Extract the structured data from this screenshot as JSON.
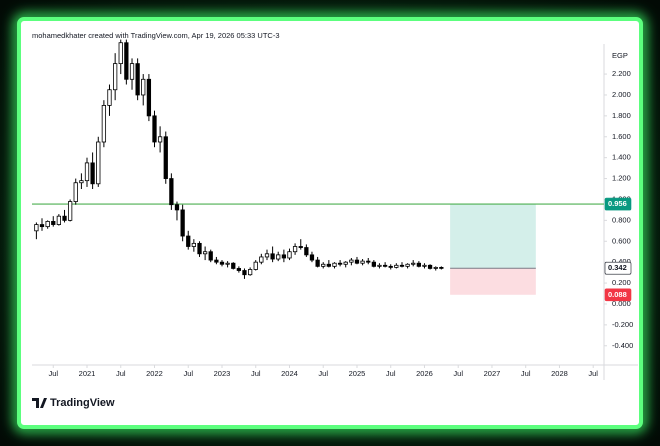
{
  "header": {
    "attribution": "mohamedkhater created with TradingView.com, Apr 19, 2026 05:33 UTC-3",
    "logo": "TradingView"
  },
  "chart_data": {
    "type": "candlestick",
    "currency": "EGP",
    "x": [
      2020.25,
      2020.333,
      2020.417,
      2020.5,
      2020.583,
      2020.667,
      2020.75,
      2020.833,
      2020.917,
      2021,
      2021.083,
      2021.167,
      2021.25,
      2021.333,
      2021.417,
      2021.5,
      2021.583,
      2021.667,
      2021.75,
      2021.833,
      2021.917,
      2022,
      2022.083,
      2022.167,
      2022.25,
      2022.333,
      2022.417,
      2022.5,
      2022.583,
      2022.667,
      2022.75,
      2022.833,
      2022.917,
      2023,
      2023.083,
      2023.167,
      2023.25,
      2023.333,
      2023.417,
      2023.5,
      2023.583,
      2023.667,
      2023.75,
      2023.833,
      2023.917,
      2024,
      2024.083,
      2024.167,
      2024.25,
      2024.333,
      2024.417,
      2024.5,
      2024.583,
      2024.667,
      2024.75,
      2024.833,
      2024.917,
      2025,
      2025.083,
      2025.167,
      2025.25,
      2025.333,
      2025.417,
      2025.5,
      2025.583,
      2025.667,
      2025.75,
      2025.833,
      2025.917,
      2026,
      2026.083,
      2026.167,
      2026.25
    ],
    "open": [
      0.7,
      0.76,
      0.74,
      0.79,
      0.76,
      0.84,
      0.8,
      0.98,
      1.16,
      1.18,
      1.35,
      1.15,
      1.55,
      1.9,
      2.05,
      2.3,
      2.5,
      2.15,
      2.3,
      2.0,
      2.15,
      1.8,
      1.55,
      1.6,
      1.2,
      0.95,
      0.9,
      0.65,
      0.55,
      0.58,
      0.48,
      0.5,
      0.42,
      0.4,
      0.38,
      0.39,
      0.34,
      0.32,
      0.28,
      0.33,
      0.4,
      0.45,
      0.48,
      0.43,
      0.47,
      0.44,
      0.5,
      0.55,
      0.54,
      0.47,
      0.42,
      0.36,
      0.38,
      0.36,
      0.39,
      0.38,
      0.4,
      0.42,
      0.39,
      0.41,
      0.4,
      0.36,
      0.37,
      0.36,
      0.35,
      0.37,
      0.36,
      0.38,
      0.39,
      0.36,
      0.37,
      0.34,
      0.35
    ],
    "high": [
      0.78,
      0.82,
      0.8,
      0.84,
      0.86,
      0.9,
      1.0,
      1.2,
      1.25,
      1.4,
      1.45,
      1.6,
      1.95,
      2.1,
      2.4,
      2.53,
      2.53,
      2.35,
      2.35,
      2.2,
      2.2,
      1.85,
      1.7,
      1.65,
      1.25,
      0.98,
      0.95,
      0.7,
      0.62,
      0.6,
      0.55,
      0.52,
      0.45,
      0.42,
      0.41,
      0.4,
      0.36,
      0.34,
      0.35,
      0.42,
      0.48,
      0.52,
      0.55,
      0.5,
      0.52,
      0.53,
      0.58,
      0.62,
      0.57,
      0.5,
      0.45,
      0.4,
      0.42,
      0.4,
      0.42,
      0.41,
      0.44,
      0.45,
      0.43,
      0.44,
      0.42,
      0.39,
      0.4,
      0.38,
      0.39,
      0.4,
      0.39,
      0.42,
      0.41,
      0.39,
      0.38,
      0.36,
      0.36
    ],
    "low": [
      0.62,
      0.7,
      0.72,
      0.74,
      0.75,
      0.78,
      0.79,
      0.95,
      1.1,
      1.12,
      1.1,
      1.12,
      1.5,
      1.8,
      1.95,
      2.2,
      2.1,
      2.05,
      1.95,
      1.9,
      1.75,
      1.5,
      1.45,
      1.15,
      0.9,
      0.8,
      0.6,
      0.52,
      0.5,
      0.45,
      0.42,
      0.4,
      0.38,
      0.36,
      0.35,
      0.33,
      0.3,
      0.24,
      0.27,
      0.32,
      0.38,
      0.42,
      0.4,
      0.41,
      0.4,
      0.42,
      0.47,
      0.52,
      0.45,
      0.4,
      0.35,
      0.34,
      0.35,
      0.34,
      0.36,
      0.35,
      0.37,
      0.38,
      0.37,
      0.38,
      0.35,
      0.34,
      0.35,
      0.33,
      0.34,
      0.35,
      0.34,
      0.36,
      0.35,
      0.34,
      0.33,
      0.32,
      0.33
    ],
    "close": [
      0.76,
      0.74,
      0.79,
      0.76,
      0.84,
      0.8,
      0.98,
      1.16,
      1.18,
      1.35,
      1.15,
      1.55,
      1.9,
      2.05,
      2.3,
      2.5,
      2.15,
      2.3,
      2.0,
      2.15,
      1.8,
      1.55,
      1.6,
      1.2,
      0.95,
      0.9,
      0.65,
      0.55,
      0.58,
      0.48,
      0.5,
      0.42,
      0.4,
      0.38,
      0.39,
      0.34,
      0.32,
      0.28,
      0.33,
      0.4,
      0.45,
      0.48,
      0.43,
      0.47,
      0.44,
      0.5,
      0.55,
      0.54,
      0.47,
      0.42,
      0.36,
      0.38,
      0.36,
      0.39,
      0.38,
      0.4,
      0.42,
      0.39,
      0.41,
      0.4,
      0.36,
      0.37,
      0.36,
      0.35,
      0.37,
      0.36,
      0.38,
      0.39,
      0.36,
      0.37,
      0.34,
      0.35,
      0.342
    ],
    "up_color": "#ffffff",
    "down_color": "#000000",
    "wick_color": "#000000",
    "xlim": [
      2020.185,
      2028.66
    ],
    "xticks": [
      {
        "value": 2020.5,
        "label": "Jul"
      },
      2021,
      {
        "value": 2021.5,
        "label": "Jul"
      },
      2022,
      {
        "value": 2022.5,
        "label": "Jul"
      },
      2023,
      {
        "value": 2023.5,
        "label": "Jul"
      },
      2024,
      {
        "value": 2024.5,
        "label": "Jul"
      },
      2025,
      {
        "value": 2025.5,
        "label": "Jul"
      },
      2026,
      {
        "value": 2026.5,
        "label": "Jul"
      },
      2027,
      {
        "value": 2027.5,
        "label": "Jul"
      },
      2028,
      {
        "value": 2028.5,
        "label": "Jul"
      }
    ],
    "ylim": [
      -0.584,
      2.526
    ],
    "yticks": [
      {
        "value": 2.2,
        "label": "2.200"
      },
      {
        "value": 2.0,
        "label": "2.000"
      },
      {
        "value": 1.8,
        "label": "1.800"
      },
      {
        "value": 1.6,
        "label": "1.600"
      },
      {
        "value": 1.4,
        "label": "1.400"
      },
      {
        "value": 1.2,
        "label": "1.200"
      },
      {
        "value": 1.0,
        "label": "1.000"
      },
      {
        "value": 0.8,
        "label": "0.800"
      },
      {
        "value": 0.6,
        "label": "0.600"
      },
      {
        "value": 0.4,
        "label": "0.400"
      },
      {
        "value": 0.2,
        "label": "0.200"
      },
      {
        "value": 0,
        "label": "0.000"
      },
      {
        "value": -0.2,
        "label": "-0.200"
      },
      {
        "value": -0.4,
        "label": "-0.400"
      }
    ],
    "grid": false,
    "hline": {
      "value": 0.956,
      "color": "#4caf50"
    },
    "position": {
      "target": 0.956,
      "entry": 0.342,
      "stop": 0.088,
      "x_start": 2026.38,
      "x_end": 2027.65,
      "target_color": "#089981",
      "stop_color": "#f23645",
      "profit_fill": "#d4efea",
      "loss_fill": "#fcdde1"
    }
  }
}
